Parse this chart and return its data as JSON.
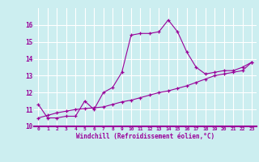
{
  "xlabel": "Windchill (Refroidissement éolien,°C)",
  "x_values": [
    0,
    1,
    2,
    3,
    4,
    5,
    6,
    7,
    8,
    9,
    10,
    11,
    12,
    13,
    14,
    15,
    16,
    17,
    18,
    19,
    20,
    21,
    22,
    23
  ],
  "y_line1": [
    11.3,
    10.5,
    10.5,
    10.6,
    10.6,
    11.5,
    11.0,
    12.0,
    12.3,
    13.2,
    15.4,
    15.5,
    15.5,
    15.6,
    16.3,
    15.6,
    14.4,
    13.5,
    13.1,
    13.2,
    13.3,
    13.3,
    13.5,
    13.8
  ],
  "y_line2": [
    10.5,
    10.65,
    10.8,
    10.9,
    11.0,
    11.05,
    11.1,
    11.15,
    11.3,
    11.45,
    11.55,
    11.7,
    11.85,
    12.0,
    12.1,
    12.25,
    12.4,
    12.6,
    12.8,
    13.0,
    13.1,
    13.2,
    13.3,
    13.8
  ],
  "line_color": "#990099",
  "bg_color": "#cceef0",
  "grid_color": "#aadddd",
  "ylim": [
    10,
    17
  ],
  "xlim": [
    -0.5,
    23.5
  ],
  "yticks": [
    10,
    11,
    12,
    13,
    14,
    15,
    16
  ],
  "xticks": [
    0,
    1,
    2,
    3,
    4,
    5,
    6,
    7,
    8,
    9,
    10,
    11,
    12,
    13,
    14,
    15,
    16,
    17,
    18,
    19,
    20,
    21,
    22,
    23
  ]
}
